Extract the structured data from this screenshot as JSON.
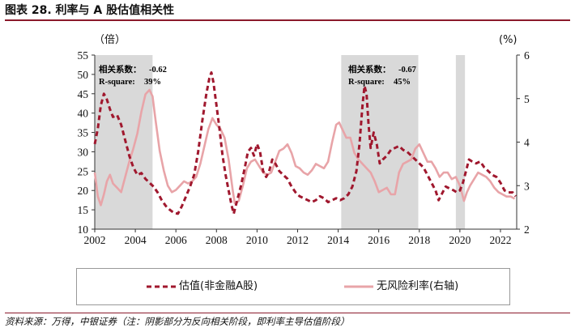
{
  "title": "图表 28. 利率与 A 股估值相关性",
  "source": "资料来源：万得，中银证券（注：阴影部分为反向相关阶段，即利率主导估值阶段）",
  "chart_data": {
    "type": "line",
    "left_unit": "（倍）",
    "right_unit": "(%)",
    "xlim": [
      2002,
      2022.8
    ],
    "ylim_left": [
      10,
      55
    ],
    "ylim_right": [
      2,
      6
    ],
    "xticks": [
      "2002",
      "2004",
      "2006",
      "2008",
      "2010",
      "2012",
      "2014",
      "2016",
      "2018",
      "2020",
      "2022"
    ],
    "yticks_left": [
      "55",
      "50",
      "45",
      "40",
      "35",
      "30",
      "25",
      "20",
      "15",
      "10"
    ],
    "yticks_right": [
      "6",
      "5",
      "4",
      "3",
      "2"
    ],
    "shaded_periods": [
      [
        2002.0,
        2004.85
      ],
      [
        2014.15,
        2017.95
      ],
      [
        2019.8,
        2020.25
      ]
    ],
    "annotations": [
      {
        "label": "相关系数：",
        "value": "-0.62",
        "r2_label": "R-square:",
        "r2_value": "39%"
      },
      {
        "label": "相关系数：",
        "value": "-0.67",
        "r2_label": "R-square:",
        "r2_value": "45%"
      }
    ],
    "series": [
      {
        "name": "估值(非金融A股)",
        "axis": "left",
        "color": "#a0182e",
        "style": "dashed",
        "points": [
          [
            2002.0,
            32
          ],
          [
            2002.15,
            36
          ],
          [
            2002.3,
            42
          ],
          [
            2002.45,
            45
          ],
          [
            2002.6,
            43.5
          ],
          [
            2002.75,
            41
          ],
          [
            2002.9,
            39
          ],
          [
            2003.1,
            39.5
          ],
          [
            2003.3,
            37
          ],
          [
            2003.5,
            33
          ],
          [
            2003.7,
            29
          ],
          [
            2003.9,
            26
          ],
          [
            2004.1,
            24
          ],
          [
            2004.3,
            24.5
          ],
          [
            2004.5,
            23
          ],
          [
            2004.7,
            22
          ],
          [
            2004.9,
            21
          ],
          [
            2005.1,
            19.5
          ],
          [
            2005.3,
            17.5
          ],
          [
            2005.5,
            16
          ],
          [
            2005.7,
            15
          ],
          [
            2005.9,
            14.2
          ],
          [
            2006.1,
            14
          ],
          [
            2006.3,
            16
          ],
          [
            2006.5,
            18.5
          ],
          [
            2006.7,
            21
          ],
          [
            2006.9,
            24
          ],
          [
            2007.1,
            30
          ],
          [
            2007.3,
            38
          ],
          [
            2007.5,
            45
          ],
          [
            2007.65,
            49
          ],
          [
            2007.75,
            50.5
          ],
          [
            2007.85,
            48
          ],
          [
            2008.0,
            42
          ],
          [
            2008.15,
            36
          ],
          [
            2008.3,
            29
          ],
          [
            2008.45,
            24
          ],
          [
            2008.6,
            20
          ],
          [
            2008.75,
            16
          ],
          [
            2008.85,
            14
          ],
          [
            2009.0,
            17
          ],
          [
            2009.2,
            21
          ],
          [
            2009.4,
            26
          ],
          [
            2009.55,
            30
          ],
          [
            2009.7,
            31
          ],
          [
            2009.85,
            29
          ],
          [
            2010.0,
            32
          ],
          [
            2010.15,
            30
          ],
          [
            2010.3,
            25
          ],
          [
            2010.45,
            23.5
          ],
          [
            2010.6,
            25
          ],
          [
            2010.75,
            28
          ],
          [
            2010.9,
            27
          ],
          [
            2011.1,
            25
          ],
          [
            2011.3,
            24
          ],
          [
            2011.5,
            23
          ],
          [
            2011.7,
            21
          ],
          [
            2011.9,
            19.5
          ],
          [
            2012.1,
            18.5
          ],
          [
            2012.3,
            18
          ],
          [
            2012.5,
            17.5
          ],
          [
            2012.7,
            17
          ],
          [
            2012.9,
            17.5
          ],
          [
            2013.1,
            18.5
          ],
          [
            2013.3,
            18
          ],
          [
            2013.5,
            17
          ],
          [
            2013.7,
            17.5
          ],
          [
            2013.9,
            18
          ],
          [
            2014.1,
            17.5
          ],
          [
            2014.3,
            18
          ],
          [
            2014.5,
            19
          ],
          [
            2014.7,
            21
          ],
          [
            2014.9,
            25
          ],
          [
            2015.05,
            32
          ],
          [
            2015.2,
            42
          ],
          [
            2015.3,
            47
          ],
          [
            2015.4,
            45
          ],
          [
            2015.5,
            37
          ],
          [
            2015.6,
            31
          ],
          [
            2015.75,
            35
          ],
          [
            2015.9,
            32
          ],
          [
            2016.05,
            27
          ],
          [
            2016.2,
            28
          ],
          [
            2016.4,
            29
          ],
          [
            2016.6,
            30.5
          ],
          [
            2016.8,
            31
          ],
          [
            2017.0,
            31.5
          ],
          [
            2017.2,
            30.5
          ],
          [
            2017.4,
            30
          ],
          [
            2017.6,
            29
          ],
          [
            2017.8,
            28
          ],
          [
            2018.0,
            27
          ],
          [
            2018.2,
            26
          ],
          [
            2018.4,
            24
          ],
          [
            2018.6,
            22
          ],
          [
            2018.8,
            20
          ],
          [
            2018.95,
            17.5
          ],
          [
            2019.1,
            19
          ],
          [
            2019.3,
            21
          ],
          [
            2019.5,
            20.5
          ],
          [
            2019.7,
            20
          ],
          [
            2019.85,
            19.5
          ],
          [
            2020.0,
            20
          ],
          [
            2020.15,
            22
          ],
          [
            2020.3,
            25
          ],
          [
            2020.45,
            28
          ],
          [
            2020.6,
            27.5
          ],
          [
            2020.8,
            27
          ],
          [
            2021.0,
            27.5
          ],
          [
            2021.2,
            26
          ],
          [
            2021.4,
            25
          ],
          [
            2021.6,
            24
          ],
          [
            2021.8,
            23.5
          ],
          [
            2022.0,
            22
          ],
          [
            2022.2,
            20
          ],
          [
            2022.4,
            19.5
          ],
          [
            2022.6,
            19.5
          ],
          [
            2022.75,
            18.5
          ]
        ]
      },
      {
        "name": "无风险利率(右轴)",
        "axis": "right",
        "color": "#e8a4a8",
        "style": "solid",
        "points": [
          [
            2002.0,
            3.3
          ],
          [
            2002.15,
            2.75
          ],
          [
            2002.3,
            2.55
          ],
          [
            2002.45,
            2.8
          ],
          [
            2002.6,
            3.1
          ],
          [
            2002.75,
            3.25
          ],
          [
            2002.9,
            3.05
          ],
          [
            2003.1,
            2.95
          ],
          [
            2003.3,
            2.85
          ],
          [
            2003.5,
            3.2
          ],
          [
            2003.7,
            3.55
          ],
          [
            2003.9,
            3.85
          ],
          [
            2004.1,
            4.2
          ],
          [
            2004.3,
            4.7
          ],
          [
            2004.5,
            5.1
          ],
          [
            2004.7,
            5.2
          ],
          [
            2004.85,
            5.05
          ],
          [
            2005.0,
            4.5
          ],
          [
            2005.2,
            3.8
          ],
          [
            2005.4,
            3.35
          ],
          [
            2005.6,
            3.0
          ],
          [
            2005.8,
            2.85
          ],
          [
            2006.0,
            2.9
          ],
          [
            2006.2,
            3.0
          ],
          [
            2006.4,
            3.1
          ],
          [
            2006.6,
            3.05
          ],
          [
            2006.8,
            3.1
          ],
          [
            2007.0,
            3.2
          ],
          [
            2007.2,
            3.5
          ],
          [
            2007.4,
            3.9
          ],
          [
            2007.6,
            4.3
          ],
          [
            2007.8,
            4.55
          ],
          [
            2008.0,
            4.4
          ],
          [
            2008.2,
            4.3
          ],
          [
            2008.4,
            4.1
          ],
          [
            2008.6,
            3.6
          ],
          [
            2008.8,
            2.9
          ],
          [
            2008.9,
            2.6
          ],
          [
            2009.1,
            2.65
          ],
          [
            2009.3,
            3.0
          ],
          [
            2009.5,
            3.4
          ],
          [
            2009.7,
            3.55
          ],
          [
            2009.9,
            3.6
          ],
          [
            2010.1,
            3.45
          ],
          [
            2010.3,
            3.3
          ],
          [
            2010.5,
            3.25
          ],
          [
            2010.7,
            3.3
          ],
          [
            2010.9,
            3.55
          ],
          [
            2011.1,
            3.8
          ],
          [
            2011.3,
            3.85
          ],
          [
            2011.5,
            3.95
          ],
          [
            2011.7,
            3.75
          ],
          [
            2011.9,
            3.45
          ],
          [
            2012.1,
            3.4
          ],
          [
            2012.3,
            3.3
          ],
          [
            2012.5,
            3.25
          ],
          [
            2012.7,
            3.35
          ],
          [
            2012.9,
            3.5
          ],
          [
            2013.1,
            3.45
          ],
          [
            2013.3,
            3.4
          ],
          [
            2013.5,
            3.55
          ],
          [
            2013.7,
            4.0
          ],
          [
            2013.9,
            4.4
          ],
          [
            2014.05,
            4.45
          ],
          [
            2014.2,
            4.3
          ],
          [
            2014.4,
            4.1
          ],
          [
            2014.6,
            4.1
          ],
          [
            2014.8,
            3.75
          ],
          [
            2015.0,
            3.6
          ],
          [
            2015.2,
            3.5
          ],
          [
            2015.4,
            3.4
          ],
          [
            2015.6,
            3.3
          ],
          [
            2015.8,
            3.1
          ],
          [
            2016.0,
            2.85
          ],
          [
            2016.2,
            2.9
          ],
          [
            2016.4,
            2.95
          ],
          [
            2016.6,
            2.8
          ],
          [
            2016.8,
            2.8
          ],
          [
            2017.0,
            3.3
          ],
          [
            2017.2,
            3.5
          ],
          [
            2017.4,
            3.55
          ],
          [
            2017.6,
            3.6
          ],
          [
            2017.8,
            3.85
          ],
          [
            2018.0,
            3.95
          ],
          [
            2018.2,
            3.75
          ],
          [
            2018.4,
            3.55
          ],
          [
            2018.6,
            3.55
          ],
          [
            2018.8,
            3.4
          ],
          [
            2019.0,
            3.2
          ],
          [
            2019.2,
            3.3
          ],
          [
            2019.4,
            3.3
          ],
          [
            2019.6,
            3.15
          ],
          [
            2019.8,
            3.2
          ],
          [
            2020.0,
            3.0
          ],
          [
            2020.2,
            2.65
          ],
          [
            2020.35,
            2.85
          ],
          [
            2020.5,
            3.0
          ],
          [
            2020.7,
            3.15
          ],
          [
            2020.9,
            3.3
          ],
          [
            2021.1,
            3.25
          ],
          [
            2021.3,
            3.2
          ],
          [
            2021.5,
            3.1
          ],
          [
            2021.7,
            2.95
          ],
          [
            2021.9,
            2.85
          ],
          [
            2022.1,
            2.8
          ],
          [
            2022.3,
            2.75
          ],
          [
            2022.5,
            2.75
          ],
          [
            2022.7,
            2.7
          ]
        ]
      }
    ],
    "legend": "bottom"
  }
}
